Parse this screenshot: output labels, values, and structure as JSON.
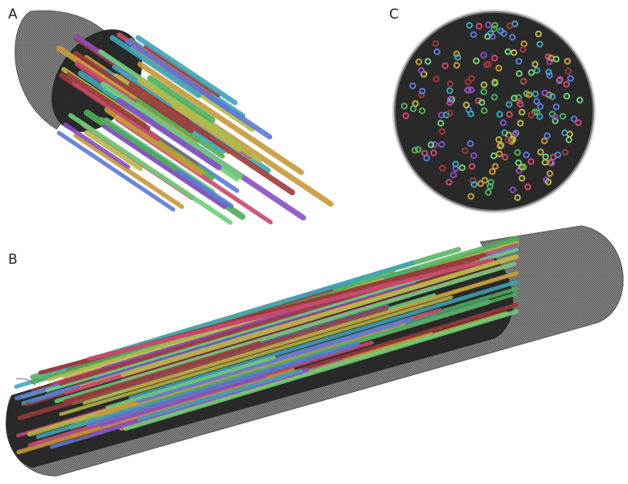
{
  "panels": [
    {
      "label": "A"
    },
    {
      "label": "B"
    },
    {
      "label": "C"
    }
  ],
  "colors": {
    "shell": "#8c8c8c",
    "shell_dark": "#3a3a3a",
    "interior": "#1e1e1e",
    "rods": [
      "#4fae5a",
      "#8a4fc2",
      "#c74a6e",
      "#3fa4b8",
      "#b7b84a",
      "#9b3b3b",
      "#5b7ad6",
      "#6fcf7a",
      "#c79a3a"
    ]
  }
}
